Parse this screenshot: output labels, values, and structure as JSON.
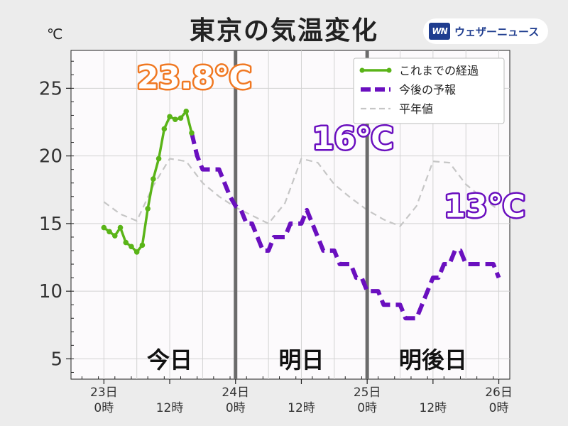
{
  "header": {
    "title": "東京の気温変化",
    "unit_label": "℃"
  },
  "brand": {
    "logo_text": "WN",
    "name": "ウェザーニュース",
    "color": "#1f3d8f"
  },
  "chart_data": {
    "type": "line",
    "x_unit": "hours since 23日 0時",
    "xlim": [
      -6,
      74
    ],
    "ylim": [
      3.5,
      27.8
    ],
    "y_ticks": [
      5,
      10,
      15,
      20,
      25
    ],
    "x_ticks": [
      {
        "x": 0,
        "line1": "23日",
        "line2": "0時"
      },
      {
        "x": 12,
        "line1": "",
        "line2": "12時"
      },
      {
        "x": 24,
        "line1": "24日",
        "line2": "0時"
      },
      {
        "x": 36,
        "line1": "",
        "line2": "12時"
      },
      {
        "x": 48,
        "line1": "25日",
        "line2": "0時"
      },
      {
        "x": 60,
        "line1": "",
        "line2": "12時"
      },
      {
        "x": 72,
        "line1": "26日",
        "line2": "0時"
      }
    ],
    "grid": true,
    "day_dividers": [
      24,
      48
    ],
    "day_labels": [
      {
        "x": 12,
        "text": "今日"
      },
      {
        "x": 36,
        "text": "明日"
      },
      {
        "x": 60,
        "text": "明後日"
      }
    ],
    "series": [
      {
        "name": "これまでの経過",
        "style": "solid-markers",
        "color": "#5ab418",
        "x": [
          0,
          1,
          2,
          3,
          4,
          5,
          6,
          7,
          8,
          9,
          10,
          11,
          12,
          13,
          14,
          15,
          16
        ],
        "y": [
          14.7,
          14.4,
          14.1,
          14.7,
          13.6,
          13.3,
          12.9,
          13.4,
          16.1,
          18.3,
          19.8,
          22.0,
          22.9,
          22.7,
          22.8,
          23.3,
          21.7
        ]
      },
      {
        "name": "今後の予報",
        "style": "step-dashed",
        "color": "#6a0fbf",
        "x": [
          16,
          17,
          18,
          19,
          20,
          21,
          22,
          23,
          24,
          25,
          26,
          27,
          28,
          29,
          30,
          31,
          32,
          33,
          34,
          35,
          36,
          37,
          38,
          39,
          40,
          41,
          42,
          43,
          44,
          45,
          46,
          47,
          48,
          49,
          50,
          51,
          52,
          53,
          54,
          55,
          56,
          57,
          58,
          59,
          60,
          61,
          62,
          63,
          64,
          65,
          66,
          67,
          68,
          69,
          70,
          71,
          72
        ],
        "y": [
          21.7,
          20,
          19,
          19,
          19,
          19,
          18,
          17,
          16.3,
          16,
          15,
          15,
          14,
          13,
          13,
          14,
          14,
          14,
          15,
          15,
          15,
          16,
          15,
          14,
          13,
          13,
          13,
          12,
          12,
          12,
          11,
          11,
          10,
          10,
          10,
          9,
          9,
          9,
          9,
          8,
          8,
          8,
          9,
          10,
          11,
          11,
          12,
          12,
          13,
          13,
          12,
          12,
          12,
          12,
          12,
          12,
          11
        ]
      },
      {
        "name": "平年値",
        "style": "dashed-thin",
        "color": "#c6c6c6",
        "x": [
          0,
          3,
          6,
          9,
          12,
          15,
          18,
          21,
          24,
          27,
          30,
          33,
          36,
          39,
          42,
          45,
          48,
          51,
          54,
          57,
          60,
          63,
          66,
          69,
          72
        ],
        "y": [
          16.6,
          15.7,
          15.2,
          17.8,
          19.8,
          19.6,
          18.0,
          17.0,
          16.2,
          15.6,
          15.0,
          16.5,
          19.8,
          19.5,
          17.9,
          16.9,
          16.0,
          15.3,
          14.8,
          16.3,
          19.6,
          19.5,
          17.9,
          16.9,
          16.0
        ]
      }
    ],
    "annotations": [
      {
        "text": "23.8℃",
        "x": 6,
        "y": 25.0,
        "color": "#f07822"
      },
      {
        "text": "16℃",
        "x": 38,
        "y": 20.5,
        "color": "#6a0fbf"
      },
      {
        "text": "13℃",
        "x": 62,
        "y": 15.5,
        "color": "#6a0fbf"
      }
    ],
    "legend": {
      "placement": "top-right",
      "entries": [
        "これまでの経過",
        "今後の予報",
        "平年値"
      ]
    }
  }
}
